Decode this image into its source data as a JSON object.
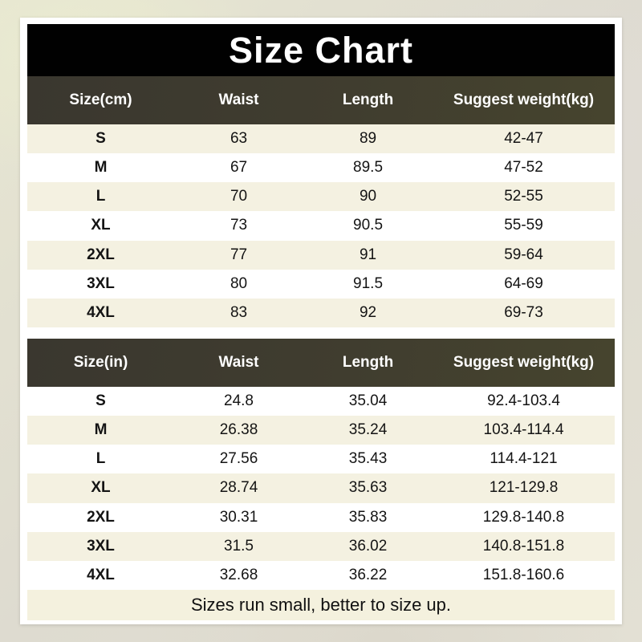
{
  "title": "Size Chart",
  "footer_note": "Sizes run small, better to size up.",
  "colors": {
    "title_bg": "#010101",
    "table_header_bg": "#3e3b30",
    "stripe_row_bg": "#f4f1e1",
    "footer_bg": "#f4f1de",
    "page_bg": "#e3e1d2",
    "text": "#141414",
    "header_text": "#ffffff"
  },
  "chart_data": [
    {
      "type": "table",
      "unit": "cm",
      "headers": [
        "Size(cm)",
        "Waist",
        "Length",
        "Suggest weight(kg)"
      ],
      "rows": [
        [
          "S",
          "63",
          "89",
          "42-47"
        ],
        [
          "M",
          "67",
          "89.5",
          "47-52"
        ],
        [
          "L",
          "70",
          "90",
          "52-55"
        ],
        [
          "XL",
          "73",
          "90.5",
          "55-59"
        ],
        [
          "2XL",
          "77",
          "91",
          "59-64"
        ],
        [
          "3XL",
          "80",
          "91.5",
          "64-69"
        ],
        [
          "4XL",
          "83",
          "92",
          "69-73"
        ]
      ]
    },
    {
      "type": "table",
      "unit": "in",
      "headers": [
        "Size(in)",
        "Waist",
        "Length",
        "Suggest weight(kg)"
      ],
      "rows": [
        [
          "S",
          "24.8",
          "35.04",
          "92.4-103.4"
        ],
        [
          "M",
          "26.38",
          "35.24",
          "103.4-114.4"
        ],
        [
          "L",
          "27.56",
          "35.43",
          "114.4-121"
        ],
        [
          "XL",
          "28.74",
          "35.63",
          "121-129.8"
        ],
        [
          "2XL",
          "30.31",
          "35.83",
          "129.8-140.8"
        ],
        [
          "3XL",
          "31.5",
          "36.02",
          "140.8-151.8"
        ],
        [
          "4XL",
          "32.68",
          "36.22",
          "151.8-160.6"
        ]
      ]
    }
  ]
}
